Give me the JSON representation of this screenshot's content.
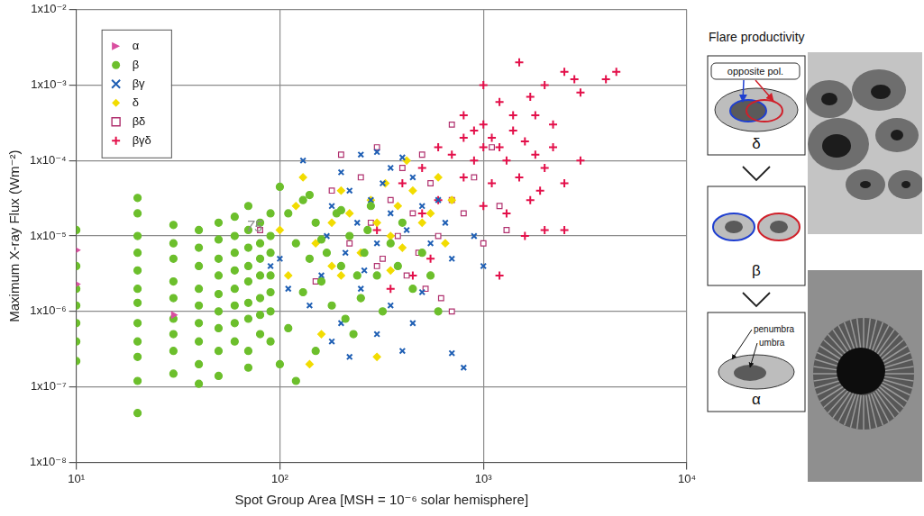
{
  "chart_data": {
    "type": "scatter",
    "x_label": "Spot Group Area [MSH = 10⁻⁶ solar hemisphere]",
    "y_label": "Maximum X-ray Flux (Wm⁻²)",
    "log": true,
    "grid": true,
    "legend": "upper left",
    "xlim": [
      10,
      10000
    ],
    "xticks": [
      {
        "value": 10,
        "label": "10¹"
      },
      {
        "value": 100,
        "label": "10²"
      },
      {
        "value": 1000,
        "label": "10³"
      },
      {
        "value": 10000,
        "label": "10⁴"
      }
    ],
    "ylim": [
      1e-08,
      0.01
    ],
    "yticks": [
      {
        "value": 1e-08,
        "label": "1x10⁻⁸"
      },
      {
        "value": 1e-07,
        "label": "1x10⁻⁷"
      },
      {
        "value": 1e-06,
        "label": "1x10⁻⁶"
      },
      {
        "value": 1e-05,
        "label": "1x10⁻⁵"
      },
      {
        "value": 0.0001,
        "label": "1x10⁻⁴"
      },
      {
        "value": 0.001,
        "label": "1x10⁻³"
      },
      {
        "value": 0.01,
        "label": "1x10⁻²"
      }
    ],
    "annotations": [
      {
        "text": "75",
        "x": 75,
        "y": 1.3e-05
      }
    ],
    "series": [
      {
        "name": "α",
        "color": "#d94fa0",
        "marker": "triangle_right",
        "points": [
          [
            10,
            6.5e-06
          ],
          [
            10,
            2.3e-06
          ],
          [
            30,
            9e-07
          ]
        ]
      },
      {
        "name": "β",
        "color": "#6cbf2c",
        "marker": "circle",
        "points": [
          [
            10,
            1.2e-05
          ],
          [
            10,
            4e-06
          ],
          [
            10,
            2e-06
          ],
          [
            10,
            1.2e-06
          ],
          [
            10,
            7e-07
          ],
          [
            10,
            4e-07
          ],
          [
            10,
            2.2e-07
          ],
          [
            20,
            3.2e-05
          ],
          [
            20,
            2e-05
          ],
          [
            20,
            1e-05
          ],
          [
            20,
            6e-06
          ],
          [
            20,
            3.5e-06
          ],
          [
            20,
            2e-06
          ],
          [
            20,
            1.3e-06
          ],
          [
            20,
            7e-07
          ],
          [
            20,
            4e-07
          ],
          [
            20,
            2.5e-07
          ],
          [
            20,
            1.2e-07
          ],
          [
            20,
            4.5e-08
          ],
          [
            30,
            1.4e-05
          ],
          [
            30,
            8e-06
          ],
          [
            30,
            5e-06
          ],
          [
            30,
            2.5e-06
          ],
          [
            30,
            1.5e-06
          ],
          [
            30,
            8e-07
          ],
          [
            30,
            5e-07
          ],
          [
            30,
            3e-07
          ],
          [
            30,
            1.5e-07
          ],
          [
            40,
            1.2e-05
          ],
          [
            40,
            7e-06
          ],
          [
            40,
            4e-06
          ],
          [
            40,
            2e-06
          ],
          [
            40,
            1.2e-06
          ],
          [
            40,
            7e-07
          ],
          [
            40,
            4e-07
          ],
          [
            40,
            2e-07
          ],
          [
            40,
            1.1e-07
          ],
          [
            50,
            1.5e-05
          ],
          [
            50,
            9e-06
          ],
          [
            50,
            5e-06
          ],
          [
            50,
            3e-06
          ],
          [
            50,
            1.7e-06
          ],
          [
            50,
            1e-06
          ],
          [
            50,
            6e-07
          ],
          [
            50,
            3e-07
          ],
          [
            50,
            1.4e-07
          ],
          [
            60,
            1.8e-05
          ],
          [
            60,
            1e-05
          ],
          [
            60,
            6e-06
          ],
          [
            60,
            3.5e-06
          ],
          [
            60,
            2e-06
          ],
          [
            60,
            1.2e-06
          ],
          [
            60,
            7e-07
          ],
          [
            60,
            4e-07
          ],
          [
            70,
            2.5e-05
          ],
          [
            70,
            1.2e-05
          ],
          [
            70,
            7e-06
          ],
          [
            70,
            4e-06
          ],
          [
            70,
            2.5e-06
          ],
          [
            70,
            1.3e-06
          ],
          [
            70,
            8e-07
          ],
          [
            70,
            3e-07
          ],
          [
            70,
            1.8e-07
          ],
          [
            80,
            1.5e-05
          ],
          [
            80,
            8e-06
          ],
          [
            80,
            5e-06
          ],
          [
            80,
            3e-06
          ],
          [
            80,
            1.5e-06
          ],
          [
            80,
            9e-07
          ],
          [
            80,
            5e-07
          ],
          [
            90,
            2e-05
          ],
          [
            90,
            1e-05
          ],
          [
            90,
            6e-06
          ],
          [
            90,
            3e-06
          ],
          [
            90,
            1.8e-06
          ],
          [
            90,
            1e-06
          ],
          [
            90,
            4e-07
          ],
          [
            100,
            4.5e-05
          ],
          [
            110,
            2e-05
          ],
          [
            120,
            8e-06
          ],
          [
            130,
            3e-05
          ],
          [
            140,
            5e-06
          ],
          [
            150,
            1.5e-05
          ],
          [
            160,
            2.5e-06
          ],
          [
            170,
            6e-06
          ],
          [
            180,
            1.2e-06
          ],
          [
            190,
            2e-05
          ],
          [
            200,
            4e-06
          ],
          [
            210,
            8e-07
          ],
          [
            220,
            1e-05
          ],
          [
            240,
            3e-06
          ],
          [
            250,
            1.5e-06
          ],
          [
            260,
            6e-06
          ],
          [
            280,
            2.5e-05
          ],
          [
            300,
            3e-06
          ],
          [
            320,
            1e-06
          ],
          [
            350,
            8e-06
          ],
          [
            380,
            4e-06
          ],
          [
            400,
            1.5e-05
          ],
          [
            450,
            2e-06
          ],
          [
            500,
            6e-06
          ],
          [
            550,
            3e-06
          ],
          [
            600,
            1e-06
          ],
          [
            100,
            2e-07
          ],
          [
            120,
            1.2e-07
          ],
          [
            150,
            3e-07
          ],
          [
            110,
            6e-07
          ],
          [
            130,
            1.8e-06
          ],
          [
            160,
            9e-06
          ],
          [
            200,
            2.2e-05
          ],
          [
            230,
            5e-07
          ],
          [
            270,
            1.2e-05
          ],
          [
            140,
            3.5e-05
          ]
        ]
      },
      {
        "name": "βγ",
        "color": "#1f5fb4",
        "marker": "x",
        "points": [
          [
            130,
            0.0001
          ],
          [
            200,
            7e-05
          ],
          [
            250,
            0.00012
          ],
          [
            300,
            0.00013
          ],
          [
            350,
            8e-05
          ],
          [
            400,
            0.00011
          ],
          [
            220,
            4e-05
          ],
          [
            280,
            3e-05
          ],
          [
            320,
            5e-05
          ],
          [
            450,
            6e-05
          ],
          [
            180,
            2.5e-05
          ],
          [
            150,
            1.5e-05
          ],
          [
            120,
            8e-06
          ],
          [
            100,
            5e-06
          ],
          [
            110,
            2e-06
          ],
          [
            170,
            1e-05
          ],
          [
            210,
            6e-06
          ],
          [
            240,
            1.5e-05
          ],
          [
            260,
            3.5e-06
          ],
          [
            300,
            8e-06
          ],
          [
            350,
            2e-05
          ],
          [
            380,
            4e-06
          ],
          [
            420,
            1.2e-05
          ],
          [
            500,
            2.5e-05
          ],
          [
            550,
            8e-06
          ],
          [
            600,
            3e-05
          ],
          [
            650,
            1.5e-05
          ],
          [
            700,
            5e-06
          ],
          [
            900,
            1e-05
          ],
          [
            1000,
            4e-06
          ],
          [
            140,
            1.2e-06
          ],
          [
            200,
            7e-07
          ],
          [
            250,
            2e-06
          ],
          [
            300,
            5e-07
          ],
          [
            400,
            3e-07
          ],
          [
            180,
            4e-07
          ],
          [
            220,
            2.5e-07
          ],
          [
            700,
            2.8e-07
          ],
          [
            800,
            1.8e-07
          ],
          [
            350,
            1.2e-06
          ],
          [
            500,
            1.8e-06
          ],
          [
            90,
            4e-06
          ],
          [
            80,
            1.5e-05
          ],
          [
            160,
            3e-06
          ],
          [
            450,
            7e-07
          ]
        ]
      },
      {
        "name": "δ",
        "color": "#f2dc00",
        "marker": "diamond",
        "points": [
          [
            100,
            1.2e-05
          ],
          [
            120,
            2.5e-05
          ],
          [
            150,
            8e-06
          ],
          [
            180,
            1.5e-05
          ],
          [
            200,
            4e-05
          ],
          [
            220,
            2e-05
          ],
          [
            250,
            6e-06
          ],
          [
            280,
            3e-05
          ],
          [
            300,
            1.5e-05
          ],
          [
            330,
            5e-05
          ],
          [
            350,
            1e-05
          ],
          [
            380,
            2.5e-05
          ],
          [
            400,
            7e-06
          ],
          [
            450,
            4e-05
          ],
          [
            500,
            1.5e-05
          ],
          [
            550,
            2e-05
          ],
          [
            600,
            6e-05
          ],
          [
            650,
            8e-06
          ],
          [
            200,
            3e-06
          ],
          [
            250,
            1.5e-06
          ],
          [
            160,
            5e-07
          ],
          [
            300,
            2.5e-07
          ],
          [
            140,
            2e-07
          ],
          [
            180,
            4e-06
          ],
          [
            350,
            3.5e-06
          ],
          [
            420,
            0.0001
          ],
          [
            700,
            3e-05
          ],
          [
            130,
            6e-05
          ],
          [
            110,
            3e-06
          ]
        ]
      },
      {
        "name": "βδ",
        "color": "#b0306e",
        "marker": "square",
        "points": [
          [
            80,
            1.2e-05
          ],
          [
            200,
            0.00012
          ],
          [
            250,
            6e-05
          ],
          [
            300,
            0.00015
          ],
          [
            350,
            3e-05
          ],
          [
            400,
            8e-05
          ],
          [
            450,
            2e-05
          ],
          [
            500,
            0.00012
          ],
          [
            550,
            5e-05
          ],
          [
            600,
            1e-05
          ],
          [
            700,
            3e-05
          ],
          [
            800,
            2e-05
          ],
          [
            900,
            6e-05
          ],
          [
            1000,
            8e-06
          ],
          [
            1200,
            2.5e-05
          ],
          [
            1300,
            1.2e-05
          ],
          [
            220,
            8e-06
          ],
          [
            280,
            1.5e-05
          ],
          [
            320,
            5e-06
          ],
          [
            380,
            1e-05
          ],
          [
            420,
            3e-06
          ],
          [
            480,
            6e-06
          ],
          [
            520,
            2e-06
          ],
          [
            620,
            1.5e-06
          ],
          [
            700,
            1e-06
          ],
          [
            180,
            4e-05
          ],
          [
            150,
            2.5e-06
          ],
          [
            700,
            0.0003
          ],
          [
            1100,
            0.00015
          ],
          [
            300,
            4e-06
          ]
        ]
      },
      {
        "name": "βγδ",
        "color": "#e3104a",
        "marker": "plus",
        "points": [
          [
            1000,
            0.001
          ],
          [
            1500,
            0.002
          ],
          [
            2000,
            0.001
          ],
          [
            2500,
            0.0015
          ],
          [
            3000,
            0.0008
          ],
          [
            4000,
            0.0012
          ],
          [
            4500,
            0.0015
          ],
          [
            1200,
            0.0006
          ],
          [
            1800,
            0.0004
          ],
          [
            2200,
            0.0003
          ],
          [
            2800,
            0.0012
          ],
          [
            800,
            0.0004
          ],
          [
            900,
            0.00025
          ],
          [
            1000,
            0.0003
          ],
          [
            1100,
            0.0002
          ],
          [
            1200,
            0.00015
          ],
          [
            1300,
            0.0001
          ],
          [
            1400,
            0.00025
          ],
          [
            1600,
            0.00018
          ],
          [
            1800,
            0.00012
          ],
          [
            2000,
            8e-05
          ],
          [
            2200,
            0.00015
          ],
          [
            2500,
            5e-05
          ],
          [
            3000,
            0.0001
          ],
          [
            1500,
            6e-05
          ],
          [
            1700,
            3e-05
          ],
          [
            1900,
            4e-05
          ],
          [
            1100,
            5e-05
          ],
          [
            1000,
            2.5e-05
          ],
          [
            900,
            0.0001
          ],
          [
            800,
            6e-05
          ],
          [
            700,
            0.00012
          ],
          [
            600,
            3e-05
          ],
          [
            500,
            8e-05
          ],
          [
            600,
            0.00015
          ],
          [
            500,
            2e-05
          ],
          [
            400,
            5e-05
          ],
          [
            300,
            1.2e-05
          ],
          [
            450,
            3e-06
          ],
          [
            350,
            2e-06
          ],
          [
            2000,
            1.2e-05
          ],
          [
            2500,
            1.2e-05
          ],
          [
            1600,
            1e-05
          ],
          [
            1300,
            2e-05
          ],
          [
            1200,
            3e-06
          ],
          [
            550,
            5e-06
          ],
          [
            1400,
            0.0004
          ],
          [
            1700,
            0.0007
          ],
          [
            800,
            0.0002
          ],
          [
            1000,
            0.00015
          ]
        ]
      }
    ]
  },
  "diagram": {
    "title": "Flare productivity",
    "panels": [
      {
        "label": "δ",
        "annotations": [
          "opposite pol."
        ]
      },
      {
        "label": "β",
        "annotations": []
      },
      {
        "label": "α",
        "annotations": [
          "penumbra",
          "umbra"
        ]
      }
    ]
  }
}
